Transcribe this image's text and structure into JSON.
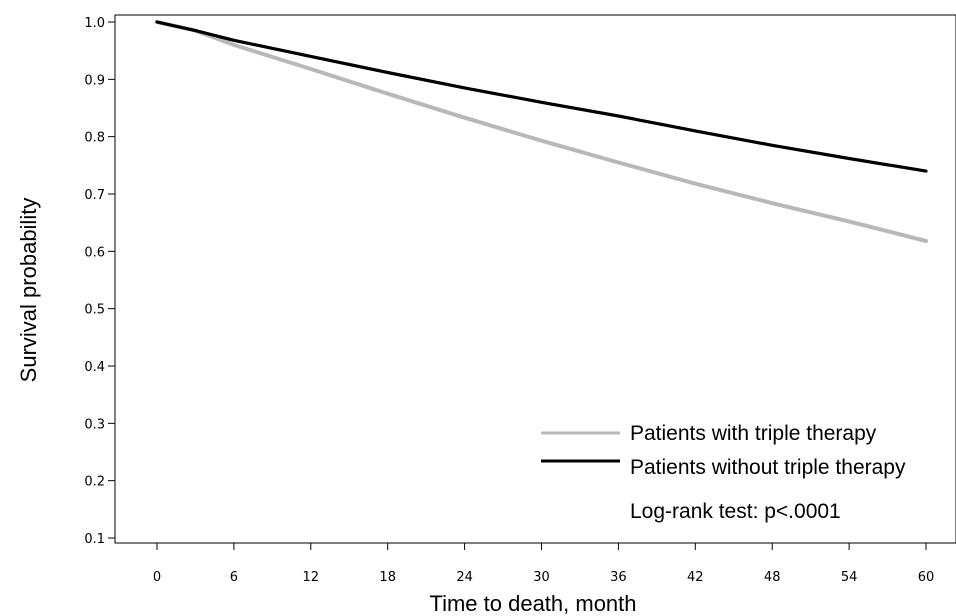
{
  "chart_data": {
    "type": "line",
    "title": "",
    "xlabel": "Time to death, month",
    "ylabel": "Survival probability",
    "xlim": [
      0,
      60
    ],
    "ylim": [
      0.1,
      1.0
    ],
    "xticks": [
      0,
      6,
      12,
      18,
      24,
      30,
      36,
      42,
      48,
      54,
      60
    ],
    "yticks": [
      0.1,
      0.2,
      0.3,
      0.4,
      0.5,
      0.6,
      0.7,
      0.8,
      0.9,
      1.0
    ],
    "grid": false,
    "legend_position": "bottom-right",
    "series": [
      {
        "name": "Patients with triple therapy",
        "color": "#b8b8b8",
        "x": [
          0,
          3,
          6,
          12,
          18,
          24,
          30,
          36,
          42,
          48,
          54,
          60
        ],
        "y": [
          1.0,
          0.985,
          0.96,
          0.918,
          0.875,
          0.833,
          0.793,
          0.755,
          0.718,
          0.684,
          0.652,
          0.618
        ]
      },
      {
        "name": "Patients without triple therapy",
        "color": "#000000",
        "x": [
          0,
          3,
          6,
          12,
          18,
          24,
          30,
          36,
          42,
          48,
          54,
          60
        ],
        "y": [
          1.0,
          0.985,
          0.968,
          0.94,
          0.912,
          0.885,
          0.86,
          0.836,
          0.81,
          0.785,
          0.762,
          0.74
        ]
      }
    ],
    "annotations": [
      "Log-rank test: p<.0001"
    ]
  }
}
